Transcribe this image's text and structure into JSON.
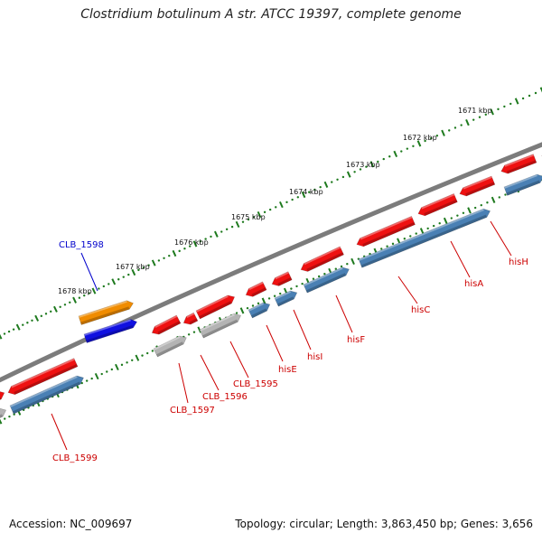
{
  "title": "Clostridium botulinum A str. ATCC 19397, complete genome",
  "footer": {
    "accession": "Accession: NC_009697",
    "summary": "Topology: circular; Length: 3,863,450 bp; Genes: 3,656"
  },
  "colors": {
    "backbone": "#808080",
    "tick": "#1e7a1e",
    "gene_red": "#ee1111",
    "gene_blue": "#4a80b4",
    "gene_gray": "#b4b4b4",
    "highlight_orange": "#f08c00",
    "highlight_blue": "#1010e0",
    "label_red": "#cc0000",
    "label_blue": "#0000cc"
  },
  "kbp_ticks": [
    "1671 kbp",
    "1672 kbp",
    "1673 kbp",
    "1674 kbp",
    "1675 kbp",
    "1676 kbp",
    "1677 kbp",
    "1678 kbp"
  ],
  "gene_labels": [
    {
      "text": "CLB_1598",
      "color": "blue"
    },
    {
      "text": "hisH",
      "color": "red"
    },
    {
      "text": "hisA",
      "color": "red"
    },
    {
      "text": "hisC",
      "color": "red"
    },
    {
      "text": "hisF",
      "color": "red"
    },
    {
      "text": "hisI",
      "color": "red"
    },
    {
      "text": "hisE",
      "color": "red"
    },
    {
      "text": "CLB_1595",
      "color": "red"
    },
    {
      "text": "CLB_1596",
      "color": "red"
    },
    {
      "text": "CLB_1597",
      "color": "red"
    },
    {
      "text": "CLB_1599",
      "color": "red"
    }
  ]
}
